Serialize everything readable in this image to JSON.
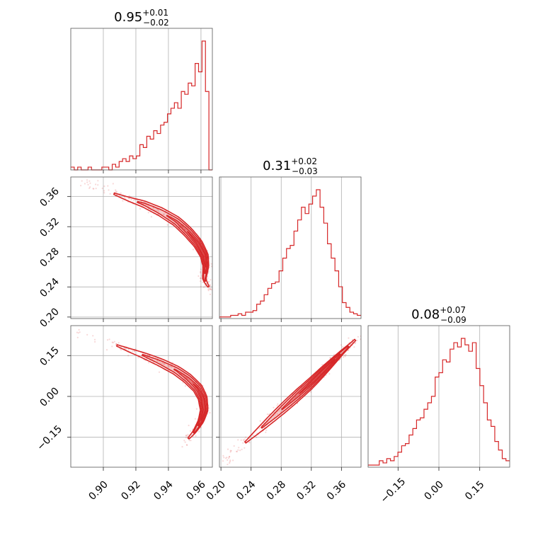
{
  "chart_data": {
    "type": "corner",
    "color": "#d62728",
    "parameters": [
      {
        "range": [
          0.88,
          0.967
        ],
        "ticks": [
          0.9,
          0.92,
          0.94,
          0.96
        ],
        "tick_labels": [
          "0.90",
          "0.92",
          "0.94",
          "0.96"
        ],
        "title": {
          "median": "0.95",
          "plus": "+0.01",
          "minus": "−0.02"
        }
      },
      {
        "range": [
          0.198,
          0.386
        ],
        "ticks": [
          0.2,
          0.24,
          0.28,
          0.32,
          0.36
        ],
        "tick_labels": [
          "0.20",
          "0.24",
          "0.28",
          "0.32",
          "0.36"
        ],
        "title": {
          "median": "0.31",
          "plus": "+0.02",
          "minus": "−0.03"
        }
      },
      {
        "range": [
          -0.26,
          0.26
        ],
        "ticks": [
          -0.15,
          0.0,
          0.15
        ],
        "tick_labels": [
          "−0.15",
          "0.00",
          "0.15"
        ],
        "title": {
          "median": "0.08",
          "plus": "+0.07",
          "minus": "−0.09"
        }
      }
    ],
    "histograms": [
      [
        1,
        0,
        1,
        0,
        0,
        1,
        0,
        0,
        0,
        1,
        1,
        0,
        2,
        1,
        3,
        4,
        3,
        5,
        4,
        5,
        9,
        8,
        12,
        11,
        14,
        13,
        16,
        17,
        20,
        22,
        24,
        22,
        28,
        27,
        31,
        30,
        38,
        35,
        46,
        28,
        0
      ],
      [
        1,
        1,
        1,
        2,
        2,
        3,
        2,
        4,
        4,
        5,
        9,
        11,
        15,
        19,
        22,
        23,
        30,
        38,
        44,
        46,
        55,
        62,
        70,
        66,
        72,
        77,
        81,
        70,
        60,
        47,
        38,
        30,
        20,
        10,
        7,
        4,
        3,
        2
      ],
      [
        1,
        1,
        1,
        3,
        2,
        4,
        3,
        5,
        7,
        10,
        11,
        15,
        18,
        22,
        23,
        27,
        30,
        33,
        42,
        44,
        50,
        49,
        55,
        58,
        56,
        60,
        57,
        54,
        58,
        46,
        38,
        30,
        22,
        19,
        12,
        8,
        4,
        3
      ]
    ],
    "ridges": {
      "p0_vs_p1": [
        [
          0.885,
          0.382
        ],
        [
          0.895,
          0.373
        ],
        [
          0.905,
          0.365
        ],
        [
          0.915,
          0.357
        ],
        [
          0.925,
          0.35
        ],
        [
          0.935,
          0.34
        ],
        [
          0.945,
          0.327
        ],
        [
          0.952,
          0.313
        ],
        [
          0.958,
          0.298
        ],
        [
          0.962,
          0.282
        ],
        [
          0.963,
          0.268
        ],
        [
          0.962,
          0.25
        ],
        [
          0.966,
          0.235
        ]
      ],
      "p0_vs_p2": [
        [
          0.882,
          0.24
        ],
        [
          0.895,
          0.215
        ],
        [
          0.905,
          0.195
        ],
        [
          0.915,
          0.172
        ],
        [
          0.925,
          0.15
        ],
        [
          0.935,
          0.125
        ],
        [
          0.945,
          0.095
        ],
        [
          0.952,
          0.065
        ],
        [
          0.958,
          0.03
        ],
        [
          0.961,
          -0.005
        ],
        [
          0.962,
          -0.05
        ],
        [
          0.96,
          -0.09
        ],
        [
          0.956,
          -0.13
        ],
        [
          0.95,
          -0.17
        ]
      ],
      "p1_vs_p2": [
        [
          0.205,
          -0.24
        ],
        [
          0.22,
          -0.2
        ],
        [
          0.24,
          -0.15
        ],
        [
          0.26,
          -0.1
        ],
        [
          0.28,
          -0.05
        ],
        [
          0.3,
          0.0
        ],
        [
          0.32,
          0.05
        ],
        [
          0.34,
          0.105
        ],
        [
          0.36,
          0.16
        ],
        [
          0.385,
          0.225
        ]
      ]
    }
  }
}
